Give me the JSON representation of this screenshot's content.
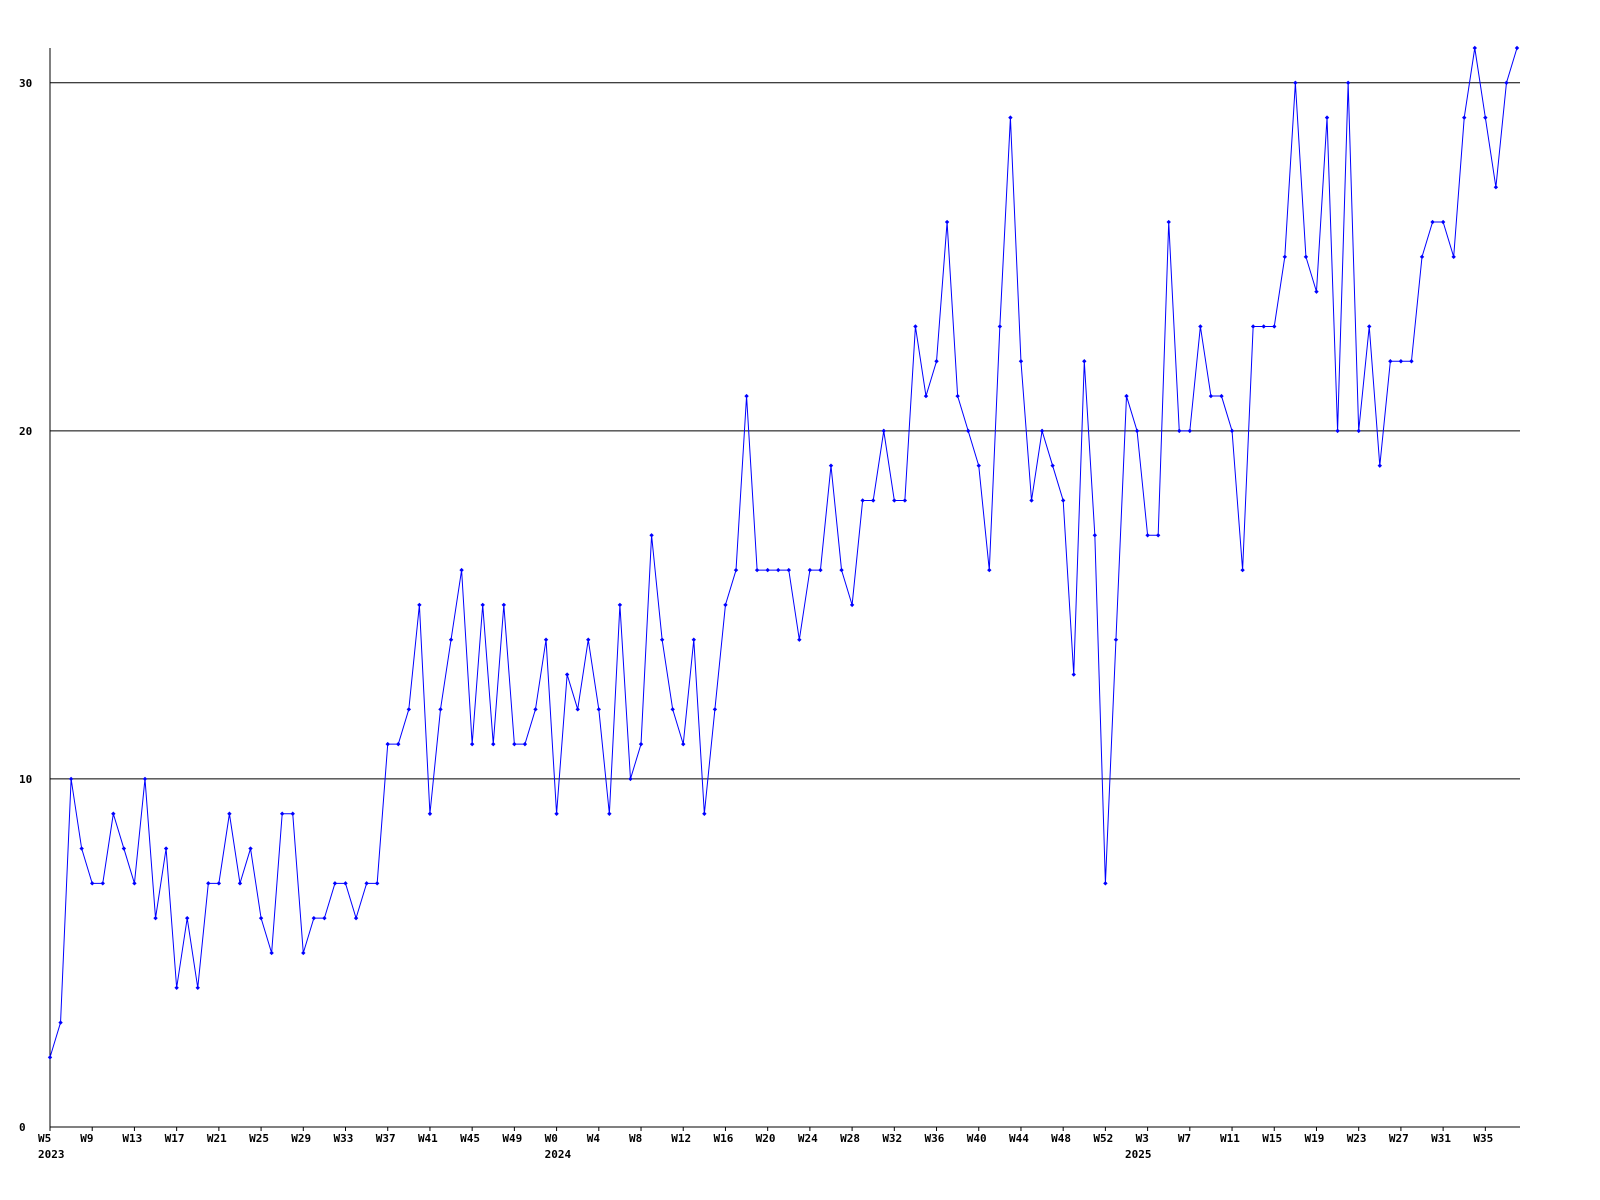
{
  "chart_data": {
    "type": "line",
    "categories": [
      "W5",
      null,
      null,
      null,
      "W9",
      null,
      null,
      null,
      "W13",
      null,
      null,
      null,
      "W17",
      null,
      null,
      null,
      "W21",
      null,
      null,
      null,
      "W25",
      null,
      null,
      null,
      "W29",
      null,
      null,
      null,
      "W33",
      null,
      null,
      null,
      "W37",
      null,
      null,
      null,
      "W41",
      null,
      null,
      null,
      "W45",
      null,
      null,
      null,
      "W49",
      null,
      null,
      null,
      "W0",
      null,
      null,
      null,
      "W4",
      null,
      null,
      null,
      "W8",
      null,
      null,
      null,
      "W12",
      null,
      null,
      null,
      "W16",
      null,
      null,
      null,
      "W20",
      null,
      null,
      null,
      "W24",
      null,
      null,
      null,
      "W28",
      null,
      null,
      null,
      "W32",
      null,
      null,
      null,
      "W36",
      null,
      null,
      null,
      "W40",
      null,
      null,
      null,
      "W44",
      null,
      null,
      null,
      "W48",
      null,
      null,
      null,
      "W52",
      null,
      null,
      null,
      "W3",
      null,
      null,
      null,
      "W7",
      null,
      null,
      null,
      "W11",
      null,
      null,
      null,
      "W15",
      null,
      null,
      null,
      "W19",
      null,
      null,
      null,
      "W23",
      null,
      null,
      null,
      "W27",
      null,
      null,
      null,
      "W31",
      null,
      null,
      null,
      "W35",
      null,
      null,
      null
    ],
    "year_categories": [
      "2023",
      null,
      null,
      null,
      null,
      null,
      null,
      null,
      null,
      null,
      null,
      null,
      null,
      null,
      null,
      null,
      null,
      null,
      null,
      null,
      null,
      null,
      null,
      null,
      null,
      null,
      null,
      null,
      null,
      null,
      null,
      null,
      null,
      null,
      null,
      null,
      null,
      null,
      null,
      null,
      null,
      null,
      null,
      null,
      null,
      null,
      null,
      null,
      "2024",
      null,
      null,
      null,
      null,
      null,
      null,
      null,
      null,
      null,
      null,
      null,
      null,
      null,
      null,
      null,
      null,
      null,
      null,
      null,
      null,
      null,
      null,
      null,
      null,
      null,
      null,
      null,
      null,
      null,
      null,
      null,
      null,
      null,
      null,
      null,
      null,
      null,
      null,
      null,
      null,
      null,
      null,
      null,
      null,
      null,
      null,
      null,
      null,
      null,
      null,
      null,
      null,
      null,
      null,
      "2025",
      null,
      null,
      null,
      null,
      null,
      null,
      null,
      null,
      null,
      null,
      null,
      null,
      null,
      null,
      null,
      null,
      null,
      null,
      null,
      null,
      null,
      null,
      null,
      null,
      null,
      null,
      null,
      null,
      null,
      null,
      null,
      null,
      null,
      null,
      null,
      null,
      null
    ],
    "values": [
      2,
      3,
      10,
      8,
      7,
      7,
      9,
      8,
      7,
      10,
      6,
      8,
      4,
      6,
      4,
      7,
      7,
      9,
      7,
      8,
      6,
      5,
      9,
      9,
      5,
      6,
      6,
      7,
      7,
      6,
      7,
      7,
      11,
      11,
      12,
      15,
      9,
      12,
      14,
      16,
      11,
      15,
      11,
      15,
      11,
      11,
      12,
      14,
      9,
      13,
      12,
      14,
      12,
      9,
      15,
      10,
      11,
      17,
      14,
      12,
      11,
      14,
      9,
      12,
      15,
      16,
      21,
      16,
      16,
      16,
      16,
      14,
      16,
      16,
      19,
      16,
      15,
      18,
      18,
      20,
      18,
      18,
      23,
      21,
      22,
      26,
      21,
      20,
      19,
      16,
      23,
      29,
      22,
      18,
      20,
      19,
      18,
      13,
      22,
      17,
      7,
      14,
      21,
      20,
      17,
      17,
      26,
      20,
      20,
      23,
      21,
      21,
      20,
      16,
      23,
      23,
      23,
      25,
      30,
      25,
      24,
      29,
      20,
      30,
      20,
      23,
      19,
      22,
      22,
      22,
      25,
      26,
      26,
      25,
      29,
      31,
      29,
      27,
      30,
      31
    ],
    "color": "#0000ff",
    "ylim": [
      0,
      31
    ],
    "yticks": [
      0,
      10,
      20,
      30
    ],
    "grid": true
  }
}
